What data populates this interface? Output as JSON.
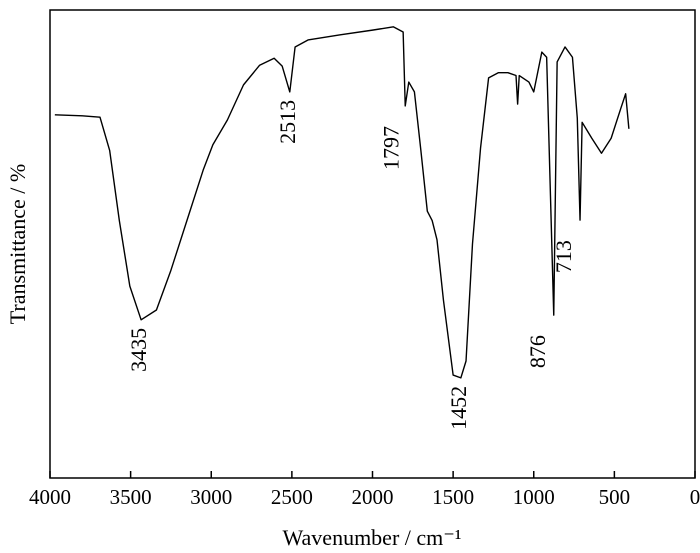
{
  "chart_data": {
    "type": "line",
    "x_label": "Wavenumber / cm⁻¹",
    "y_label": "Transmittance / %",
    "xlim": [
      4000,
      0
    ],
    "xticks": [
      4000,
      3500,
      3000,
      2500,
      2000,
      1500,
      1000,
      500,
      0
    ],
    "ylim": [
      0,
      100
    ],
    "series": [
      {
        "color": "#000000",
        "x": [
          3970,
          3800,
          3690,
          3630,
          3570,
          3505,
          3435,
          3340,
          3250,
          3150,
          3050,
          2990,
          2900,
          2800,
          2700,
          2610,
          2560,
          2513,
          2480,
          2400,
          2200,
          2000,
          1870,
          1810,
          1797,
          1775,
          1740,
          1700,
          1660,
          1630,
          1600,
          1560,
          1500,
          1452,
          1420,
          1380,
          1330,
          1280,
          1220,
          1160,
          1110,
          1100,
          1090,
          1030,
          1000,
          950,
          920,
          876,
          855,
          806,
          760,
          730,
          713,
          700,
          640,
          580,
          520,
          460,
          430,
          410
        ],
        "values": [
          77.6,
          77.4,
          77.1,
          70,
          55,
          41,
          33.8,
          35.9,
          44.4,
          55.1,
          65.8,
          71.2,
          76.5,
          84,
          88.2,
          89.7,
          88,
          82.5,
          92.1,
          93.6,
          94.7,
          95.7,
          96.4,
          95.3,
          79.5,
          84.6,
          82.5,
          70,
          57,
          55,
          50.9,
          38,
          22,
          21.4,
          25,
          50,
          70.5,
          85.5,
          86.6,
          86.6,
          86,
          79.9,
          86,
          84.6,
          82.5,
          91,
          89.9,
          34.8,
          88.9,
          92.1,
          89.9,
          76.9,
          55.1,
          76,
          72.6,
          69.4,
          72.6,
          79,
          82.1,
          74.6
        ]
      }
    ],
    "annotations": [
      {
        "label": "3435",
        "x": 3435
      },
      {
        "label": "2513",
        "x": 2513
      },
      {
        "label": "1797",
        "x": 1797
      },
      {
        "label": "1452",
        "x": 1452
      },
      {
        "label": "876",
        "x": 876
      },
      {
        "label": "713",
        "x": 713
      }
    ]
  }
}
